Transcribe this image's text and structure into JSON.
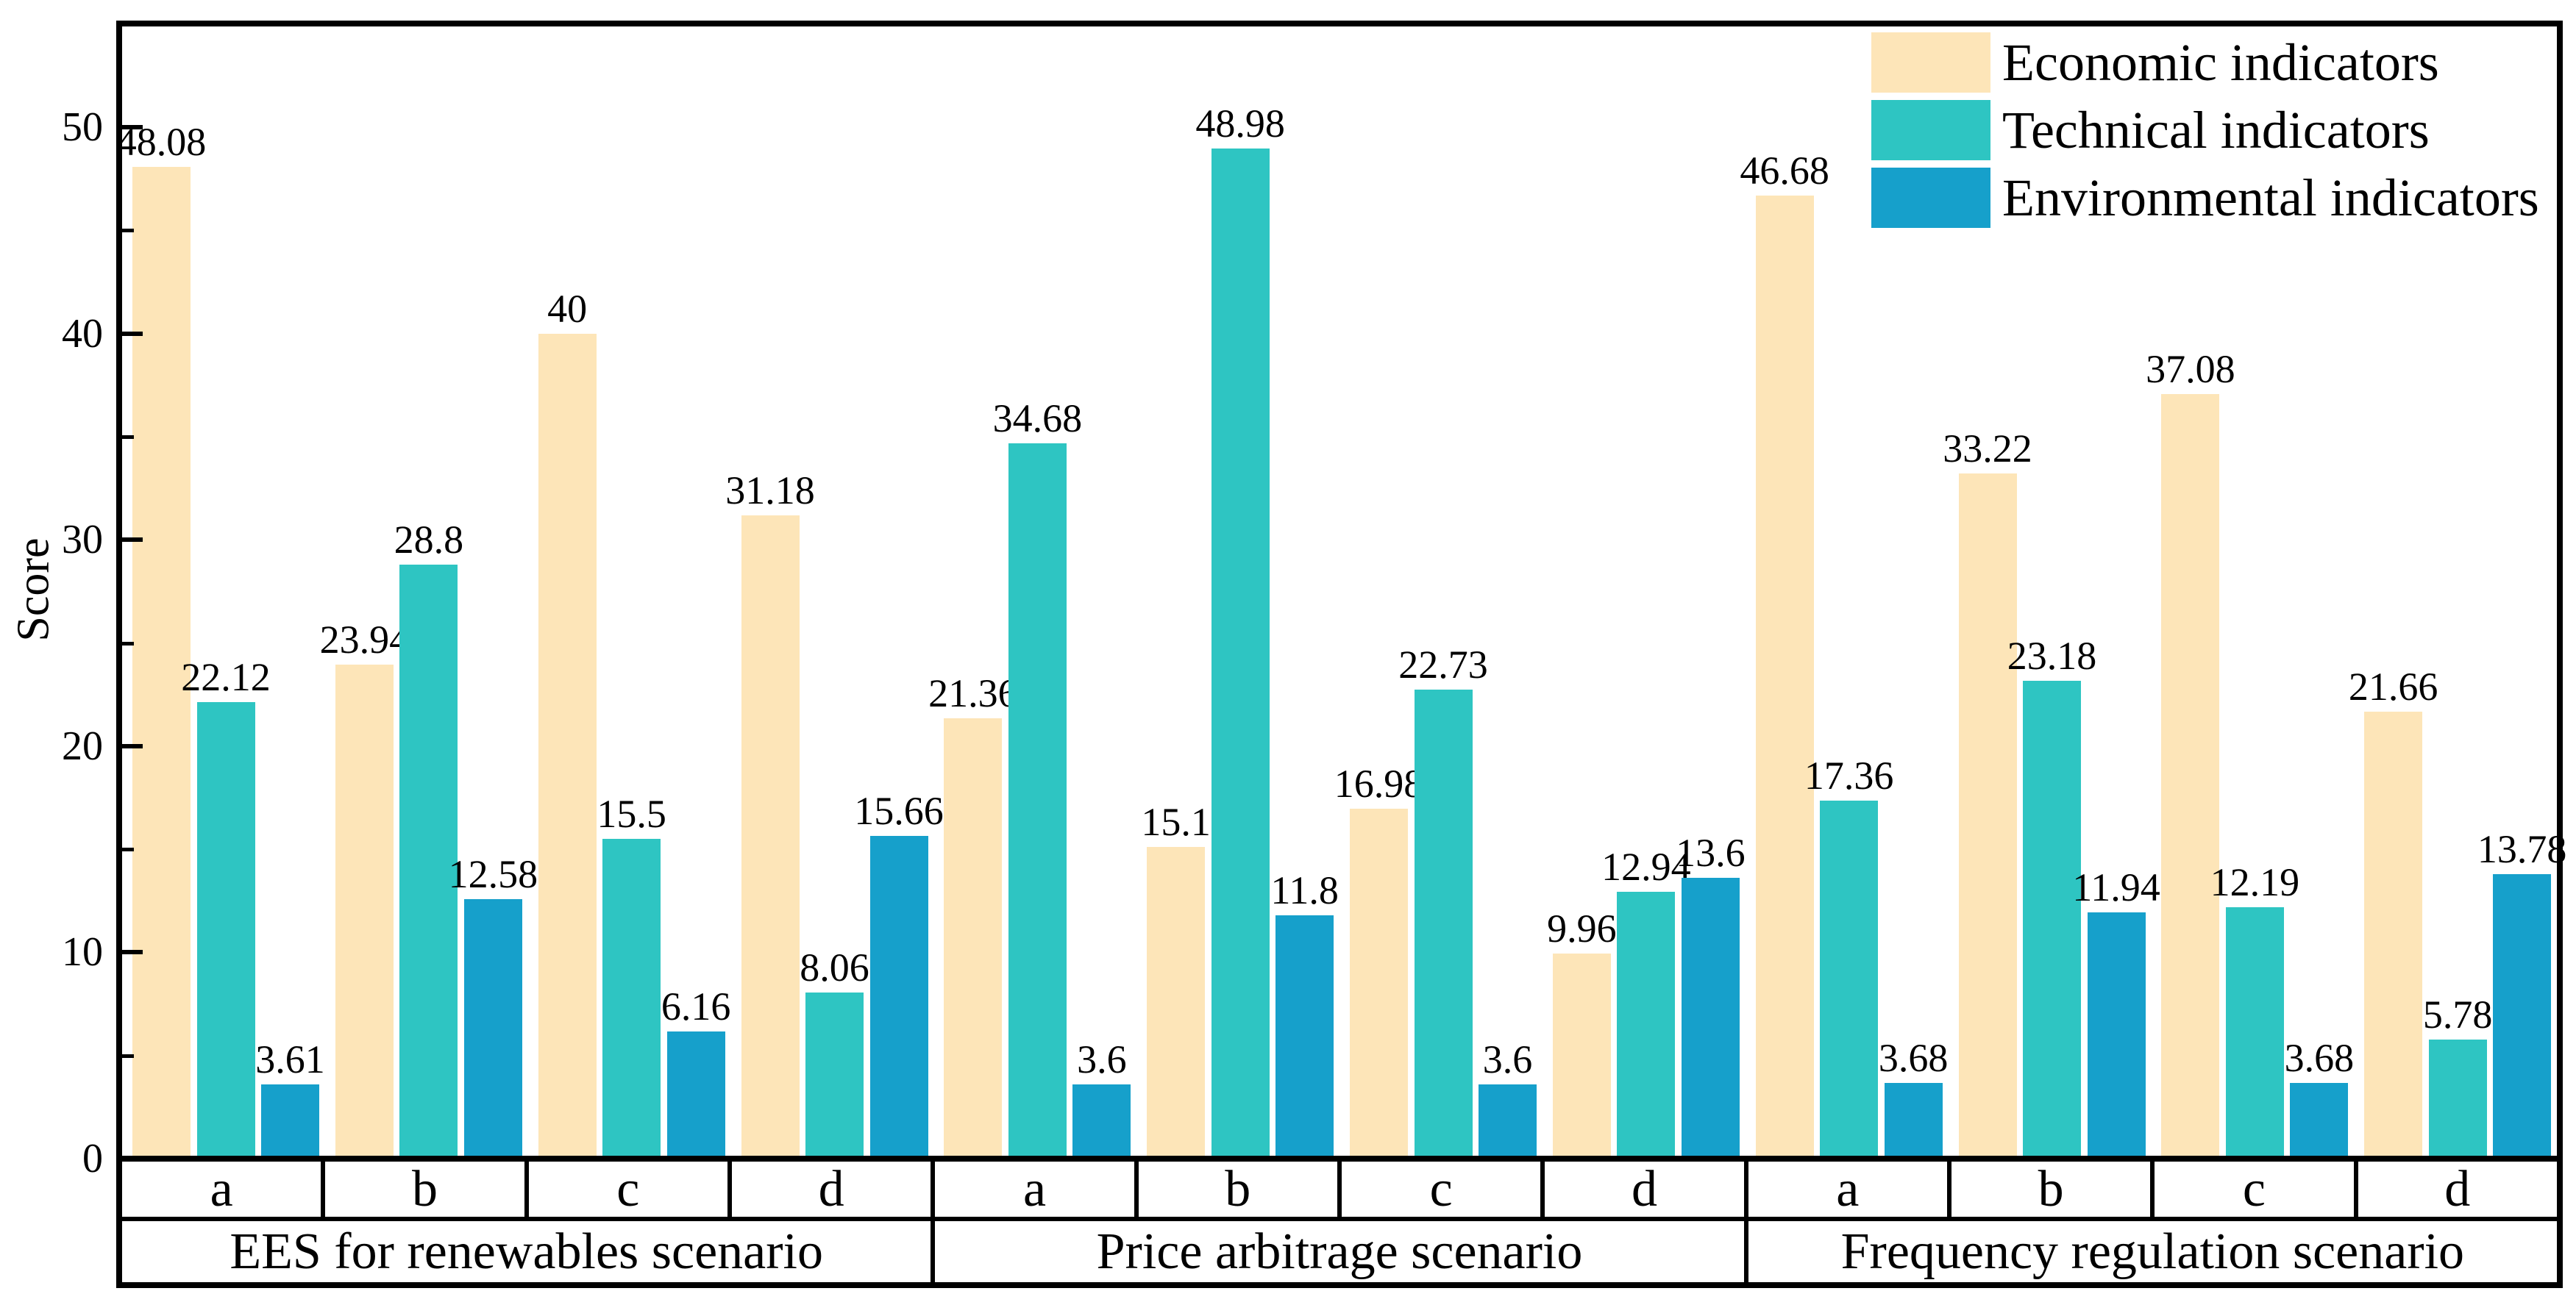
{
  "chart_data": {
    "type": "bar",
    "title": "",
    "ylabel": "Score",
    "ylim": [
      0,
      55
    ],
    "yticks_major": [
      0,
      10,
      20,
      30,
      40,
      50
    ],
    "yticks_minor": [
      5,
      15,
      25,
      35,
      45
    ],
    "grid": false,
    "legend_position": "top-right-inside",
    "axis_color": "#000000",
    "text_color": "#000000",
    "background": "#ffffff",
    "series": [
      {
        "name": "Economic indicators",
        "key": "economic",
        "color": "#FDE5B8"
      },
      {
        "name": "Technical indicators",
        "key": "technical",
        "color": "#2EC5C2"
      },
      {
        "name": "Environmental indicators",
        "key": "environmental",
        "color": "#16A0CB"
      }
    ],
    "scenarios": [
      {
        "label": "EES for renewables scenario",
        "groups": [
          {
            "label": "a",
            "values": [
              48.08,
              22.12,
              3.61
            ]
          },
          {
            "label": "b",
            "values": [
              23.94,
              28.8,
              12.58
            ]
          },
          {
            "label": "c",
            "values": [
              40,
              15.5,
              6.16
            ]
          },
          {
            "label": "d",
            "values": [
              31.18,
              8.06,
              15.66
            ]
          }
        ]
      },
      {
        "label": "Price arbitrage scenario",
        "groups": [
          {
            "label": "a",
            "values": [
              21.36,
              34.68,
              3.6
            ]
          },
          {
            "label": "b",
            "values": [
              15.1,
              48.98,
              11.8
            ]
          },
          {
            "label": "c",
            "values": [
              16.98,
              22.73,
              3.6
            ]
          },
          {
            "label": "d",
            "values": [
              9.96,
              12.94,
              13.6
            ]
          }
        ]
      },
      {
        "label": "Frequency regulation scenario",
        "groups": [
          {
            "label": "a",
            "values": [
              46.68,
              17.36,
              3.68
            ]
          },
          {
            "label": "b",
            "values": [
              33.22,
              23.18,
              11.94
            ]
          },
          {
            "label": "c",
            "values": [
              37.08,
              12.19,
              3.68
            ]
          },
          {
            "label": "d",
            "values": [
              21.66,
              5.78,
              13.78
            ]
          }
        ]
      }
    ]
  }
}
